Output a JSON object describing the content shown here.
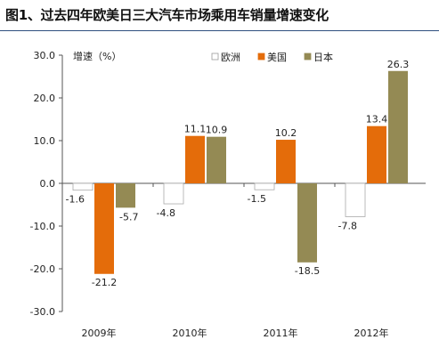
{
  "title": "图1、过去四年欧美日三大汽车市场乘用车销量增速变化",
  "chart_data": {
    "type": "bar",
    "title": "图1、过去四年欧美日三大汽车市场乘用车销量增速变化",
    "ylabel": "增速（%）",
    "xlabel": "",
    "ylim": [
      -30,
      30
    ],
    "yticks": [
      "30.0",
      "20.0",
      "10.0",
      "0.0",
      "-10.0",
      "-20.0",
      "-30.0"
    ],
    "grid": false,
    "legend_position": "top-right",
    "categories": [
      "2009年",
      "2010年",
      "2011年",
      "2012年"
    ],
    "series": [
      {
        "name": "欧洲",
        "color": "#ffffff",
        "values": [
          -1.6,
          -4.8,
          -1.5,
          -7.8
        ],
        "labels": [
          "-1.6",
          "-4.8",
          "-1.5",
          "-7.8"
        ]
      },
      {
        "name": "美国",
        "color": "#e46c0a",
        "values": [
          -21.2,
          11.1,
          10.2,
          13.4
        ],
        "labels": [
          "-21.2",
          "11.1",
          "10.2",
          "13.4"
        ]
      },
      {
        "name": "日本",
        "color": "#948a54",
        "values": [
          -5.7,
          10.9,
          -18.5,
          26.3
        ],
        "labels": [
          "-5.7",
          "10.9",
          "-18.5",
          "26.3"
        ]
      }
    ]
  }
}
